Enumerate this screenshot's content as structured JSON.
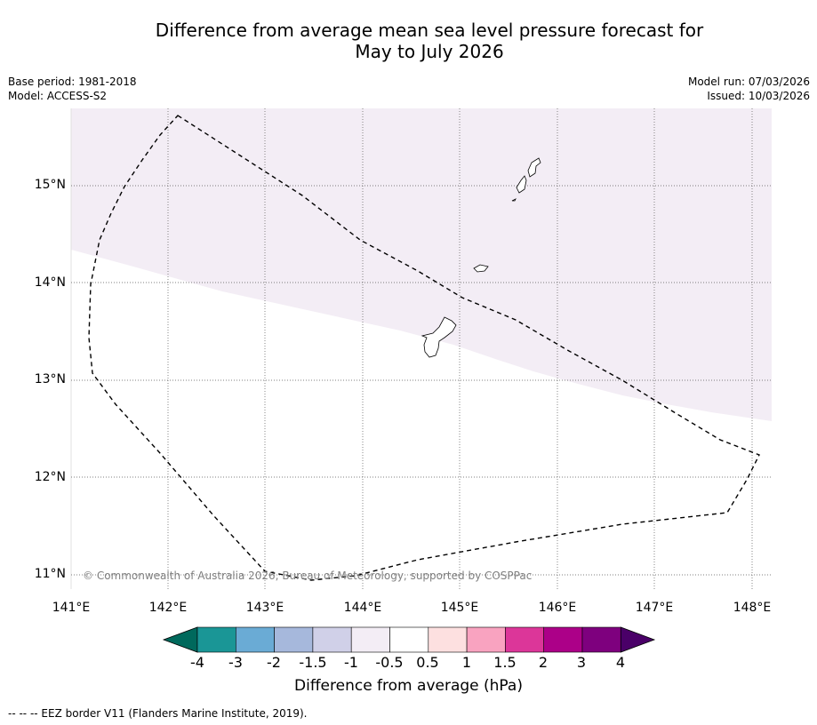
{
  "header": {
    "title_line1": "Difference from average mean sea level pressure forecast for",
    "title_line2": "May to July 2026"
  },
  "meta": {
    "base_period": "Base period: 1981-2018",
    "model": "Model: ACCESS-S2",
    "model_run": "Model run: 07/03/2026",
    "issued": "Issued: 10/03/2026"
  },
  "map": {
    "lat_labels": [
      "15°N",
      "14°N",
      "13°N",
      "12°N",
      "11°N"
    ],
    "lon_labels": [
      "141°E",
      "142°E",
      "143°E",
      "144°E",
      "145°E",
      "146°E",
      "147°E",
      "148°E"
    ],
    "copyright": "© Commonwealth of Australia 2026, Bureau of Meteorology, supported by COSPPac",
    "shaded_category": "-1 to -0.5 hPa",
    "shade_color": "#f3edf5"
  },
  "colorbar": {
    "colors": [
      "#00695c",
      "#1a9696",
      "#6aabd5",
      "#a6b8dc",
      "#d0d0e8",
      "#f3edf5",
      "#ffffff",
      "#fde0e0",
      "#f9a3c0",
      "#dc3699",
      "#ac0088",
      "#7e007e",
      "#4a0068"
    ],
    "tick_labels": [
      "-4",
      "-3",
      "-2",
      "-1.5",
      "-1",
      "-0.5",
      "0.5",
      "1",
      "1.5",
      "2",
      "3",
      "4"
    ],
    "label": "Difference from average (hPa)"
  },
  "footer": {
    "legend": "-- -- -- EEZ border V11 (Flanders Marine Institute, 2019)."
  }
}
